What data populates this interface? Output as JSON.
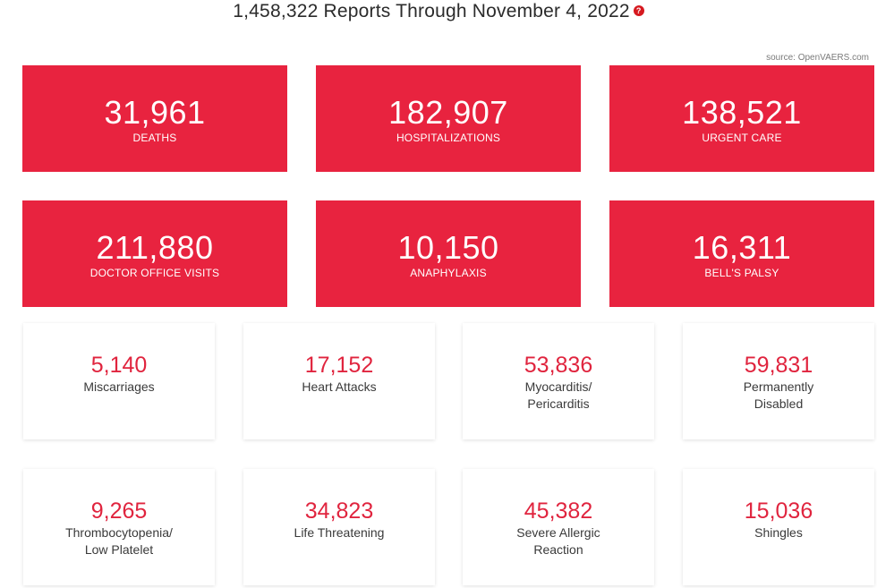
{
  "header": {
    "title": "1,458,322 Reports Through November 4, 2022",
    "help_icon": "question-icon",
    "help_glyph": "?",
    "source": "source: OpenVAERS.com"
  },
  "colors": {
    "red_card_bg": "#e8233f",
    "stat_number": "#e0243e"
  },
  "red_cards": [
    {
      "value": "31,961",
      "label": "DEATHS"
    },
    {
      "value": "182,907",
      "label": "HOSPITALIZATIONS"
    },
    {
      "value": "138,521",
      "label": "URGENT CARE"
    },
    {
      "value": "211,880",
      "label": "DOCTOR OFFICE VISITS"
    },
    {
      "value": "10,150",
      "label": "ANAPHYLAXIS"
    },
    {
      "value": "16,311",
      "label": "BELL'S PALSY"
    }
  ],
  "white_cards": [
    {
      "value": "5,140",
      "label": "Miscarriages"
    },
    {
      "value": "17,152",
      "label": "Heart Attacks"
    },
    {
      "value": "53,836",
      "label": "Myocarditis/\nPericarditis"
    },
    {
      "value": "59,831",
      "label": "Permanently\nDisabled"
    },
    {
      "value": "9,265",
      "label": "Thrombocytopenia/\nLow Platelet"
    },
    {
      "value": "34,823",
      "label": "Life Threatening"
    },
    {
      "value": "45,382",
      "label": "Severe Allergic\nReaction"
    },
    {
      "value": "15,036",
      "label": "Shingles"
    }
  ]
}
